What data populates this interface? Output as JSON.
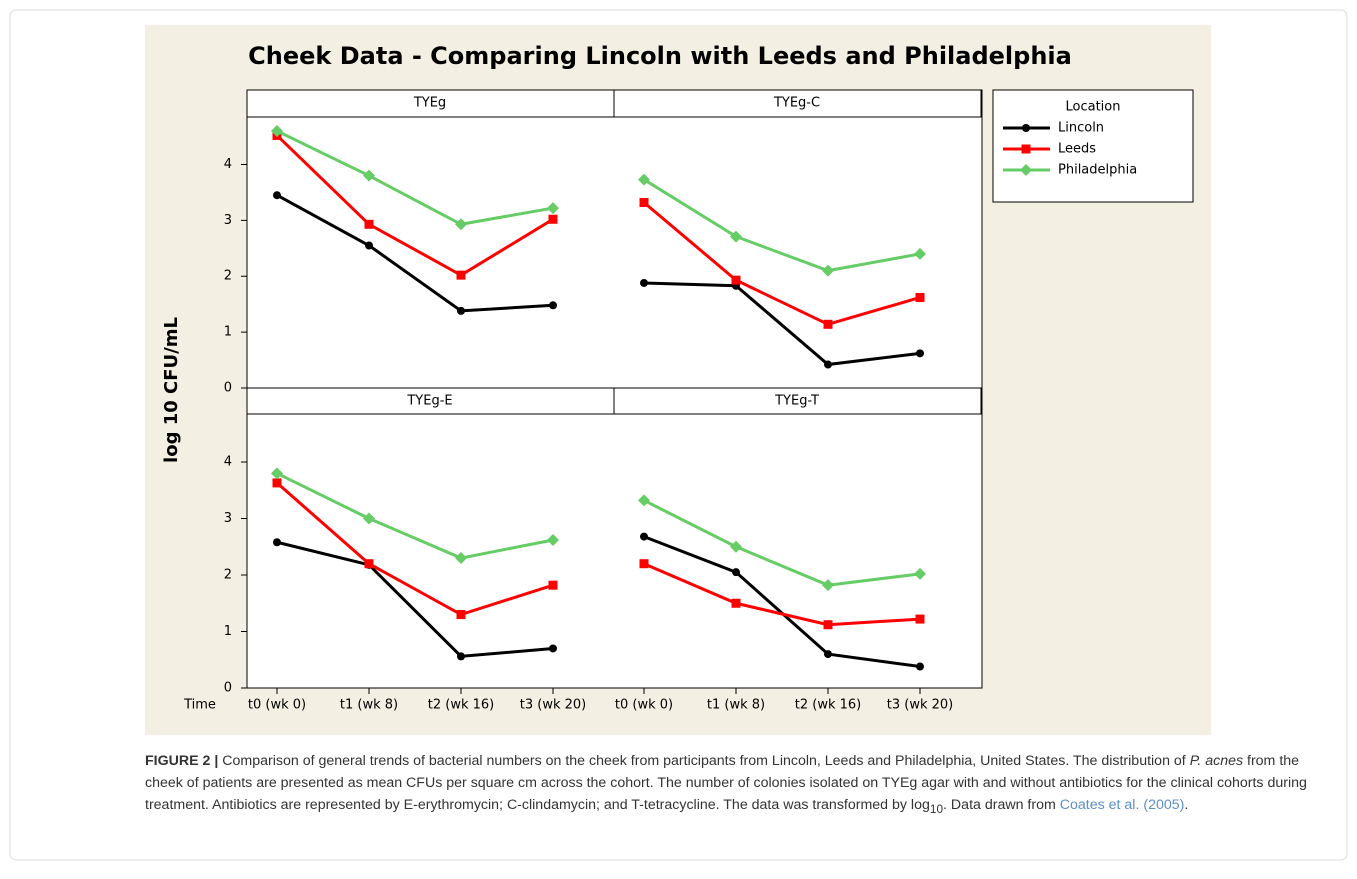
{
  "figure": {
    "title": "Cheek Data - Comparing Lincoln with Leeds and Philadelphia",
    "ylabel": "log 10 CFU/mL",
    "xlabel": "Time",
    "legend_title": "Location",
    "categories": [
      "t0 (wk 0)",
      "t1 (wk 8)",
      "t2 (wk 16)",
      "t3 (wk 20)"
    ],
    "ylim": [
      0,
      4.85
    ],
    "yticks": [
      0,
      1,
      2,
      3,
      4
    ],
    "caption": {
      "label": "FIGURE 2 |",
      "text1": " Comparison of general trends of bacterial numbers on the cheek from participants from Lincoln, Leeds and Philadelphia, United States. The distribution of ",
      "italic": "P. acnes",
      "text2": " from the cheek of patients are presented as mean CFUs per square cm across the cohort. The number of colonies isolated on TYEg agar with and without antibiotics for the clinical cohorts during treatment. Antibiotics are represented by E-erythromycin; C-clindamycin; and T-tetracycline. The data was transformed by log",
      "sub": "10",
      "text3": ". Data drawn from ",
      "link": "Coates et al. (2005)",
      "text4": "."
    }
  },
  "chart_data": [
    {
      "type": "line",
      "title": "TYEg",
      "series": [
        {
          "name": "Lincoln",
          "color": "#000000",
          "marker": "circle",
          "values": [
            3.45,
            2.55,
            1.38,
            1.48
          ]
        },
        {
          "name": "Leeds",
          "color": "#ff0000",
          "marker": "square",
          "values": [
            4.52,
            2.93,
            2.02,
            3.02
          ]
        },
        {
          "name": "Philadelphia",
          "color": "#66cc66",
          "marker": "diamond",
          "values": [
            4.6,
            3.8,
            2.93,
            3.22
          ]
        }
      ]
    },
    {
      "type": "line",
      "title": "TYEg-C",
      "series": [
        {
          "name": "Lincoln",
          "color": "#000000",
          "marker": "circle",
          "values": [
            1.88,
            1.83,
            0.42,
            0.62
          ]
        },
        {
          "name": "Leeds",
          "color": "#ff0000",
          "marker": "square",
          "values": [
            3.32,
            1.93,
            1.14,
            1.62
          ]
        },
        {
          "name": "Philadelphia",
          "color": "#66cc66",
          "marker": "diamond",
          "values": [
            3.73,
            2.71,
            2.1,
            2.4
          ]
        }
      ]
    },
    {
      "type": "line",
      "title": "TYEg-E",
      "series": [
        {
          "name": "Lincoln",
          "color": "#000000",
          "marker": "circle",
          "values": [
            2.58,
            2.18,
            0.56,
            0.7
          ]
        },
        {
          "name": "Leeds",
          "color": "#ff0000",
          "marker": "square",
          "values": [
            3.63,
            2.2,
            1.3,
            1.82
          ]
        },
        {
          "name": "Philadelphia",
          "color": "#66cc66",
          "marker": "diamond",
          "values": [
            3.8,
            3.0,
            2.3,
            2.62
          ]
        }
      ]
    },
    {
      "type": "line",
      "title": "TYEg-T",
      "series": [
        {
          "name": "Lincoln",
          "color": "#000000",
          "marker": "circle",
          "values": [
            2.68,
            2.05,
            0.6,
            0.38
          ]
        },
        {
          "name": "Leeds",
          "color": "#ff0000",
          "marker": "square",
          "values": [
            2.2,
            1.5,
            1.12,
            1.22
          ]
        },
        {
          "name": "Philadelphia",
          "color": "#66cc66",
          "marker": "diamond",
          "values": [
            3.32,
            2.5,
            1.82,
            2.02
          ]
        }
      ]
    }
  ]
}
